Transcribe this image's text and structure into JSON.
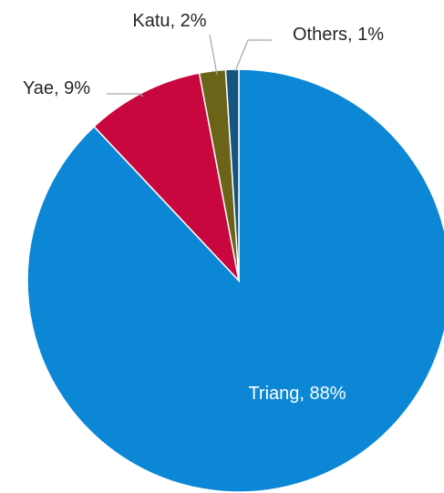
{
  "chart_data": {
    "type": "pie",
    "title": "",
    "slices": [
      {
        "label": "Triang",
        "value": 88,
        "display": "Triang, 88%",
        "color": "#0b87d6"
      },
      {
        "label": "Yae",
        "value": 9,
        "display": "Yae, 9%",
        "color": "#c8073f"
      },
      {
        "label": "Katu",
        "value": 2,
        "display": "Katu, 2%",
        "color": "#6b6418"
      },
      {
        "label": "Others",
        "value": 1,
        "display": "Others, 1%",
        "color": "#15547f"
      }
    ],
    "start_angle": "12 o'clock",
    "direction": "clockwise",
    "legend": "none"
  }
}
